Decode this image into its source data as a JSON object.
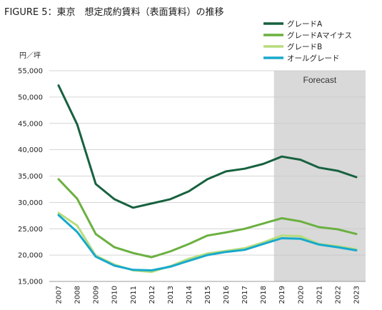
{
  "title": "FIGURE 5：東京　想定成約賃料（表面賃料）の推移",
  "chart_data": {
    "type": "line",
    "title": "FIGURE 5：東京　想定成約賃料（表面賃料）の推移",
    "ylabel": "円／坪",
    "xlabel": "",
    "x": [
      "2007",
      "2008",
      "2009",
      "2010",
      "2011",
      "2012",
      "2013",
      "2014",
      "2015",
      "2016",
      "2017",
      "2018",
      "2019",
      "2020",
      "2021",
      "2022",
      "2023"
    ],
    "ylim": [
      15000,
      55000
    ],
    "yticks": [
      15000,
      20000,
      25000,
      30000,
      35000,
      40000,
      45000,
      50000,
      55000
    ],
    "ytick_labels": [
      "15,000",
      "20,000",
      "25,000",
      "30,000",
      "35,000",
      "40,000",
      "45,000",
      "50,000",
      "55,000"
    ],
    "grid": "horizontal",
    "legend_position": "top-right",
    "forecast": {
      "label": "Forecast",
      "from": "2019",
      "to": "2023",
      "color": "#d9d9d9"
    },
    "series": [
      {
        "name": "グレードA",
        "color": "#17613f",
        "values": [
          52200,
          44800,
          33500,
          30600,
          29000,
          29800,
          30600,
          32100,
          34400,
          35900,
          36400,
          37300,
          38700,
          38100,
          36600,
          36000,
          34800
        ]
      },
      {
        "name": "グレードAマイナス",
        "color": "#6bb040",
        "values": [
          34400,
          30700,
          24000,
          21500,
          20400,
          19600,
          20700,
          22100,
          23700,
          24300,
          25000,
          26000,
          27000,
          26400,
          25300,
          24900,
          24000
        ]
      },
      {
        "name": "グレードB",
        "color": "#b8dc7e",
        "values": [
          28000,
          25600,
          19900,
          18200,
          17100,
          16800,
          17900,
          19300,
          20300,
          20800,
          21300,
          22400,
          23700,
          23600,
          22100,
          21700,
          21100
        ]
      },
      {
        "name": "オールグレード",
        "color": "#17a9cc",
        "values": [
          27600,
          24400,
          19700,
          18000,
          17200,
          17100,
          17800,
          18900,
          20000,
          20600,
          21000,
          22100,
          23200,
          23100,
          22000,
          21500,
          20900
        ]
      }
    ]
  }
}
